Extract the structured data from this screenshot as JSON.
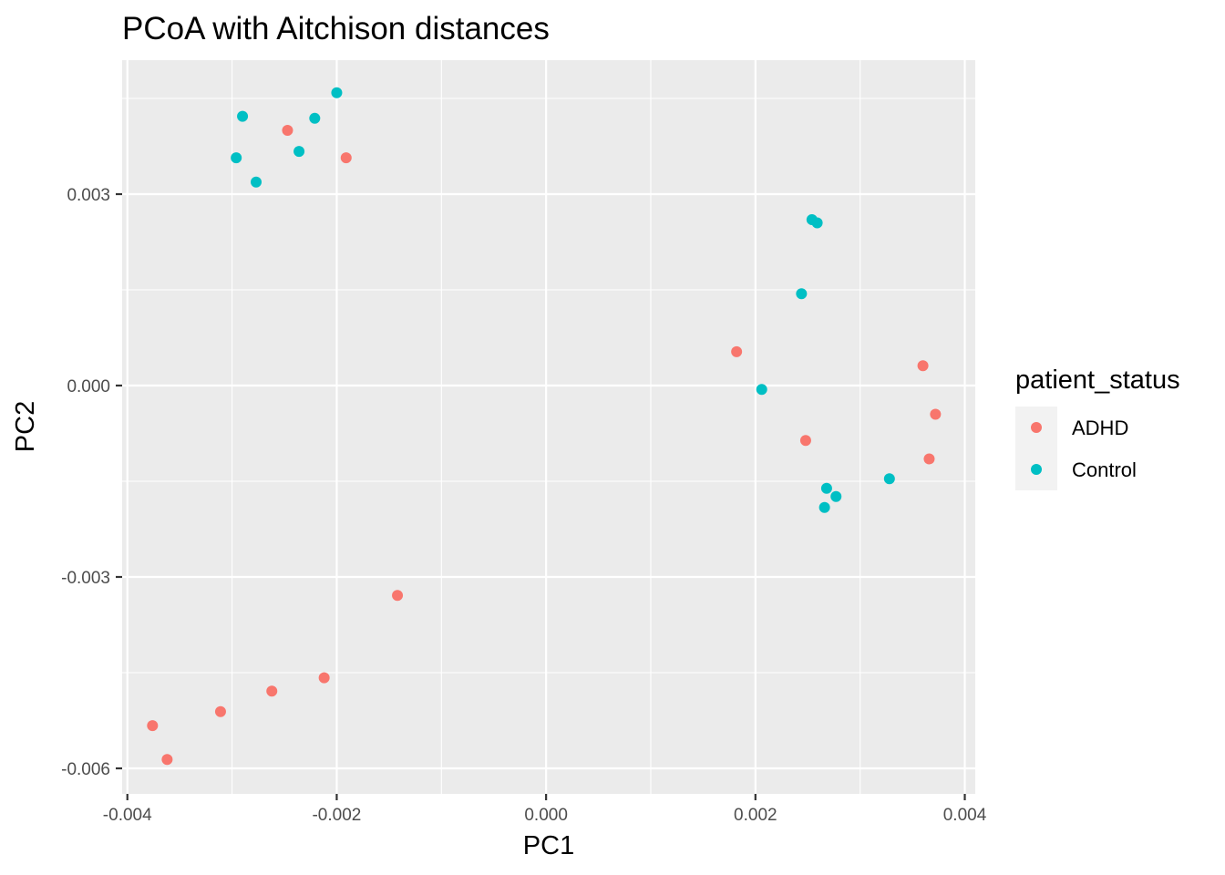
{
  "chart_data": {
    "type": "scatter",
    "title": "PCoA with Aitchison distances",
    "xlabel": "PC1",
    "ylabel": "PC2",
    "xlim": [
      -0.00405,
      0.0041
    ],
    "ylim": [
      -0.0064,
      0.0051
    ],
    "x_ticks": [
      -0.004,
      -0.002,
      0.0,
      0.002,
      0.004
    ],
    "x_tick_labels": [
      "-0.004",
      "-0.002",
      "0.000",
      "0.002",
      "0.004"
    ],
    "y_ticks": [
      -0.006,
      -0.003,
      0.0,
      0.003
    ],
    "y_tick_labels": [
      "-0.006",
      "-0.003",
      "0.000",
      "0.003"
    ],
    "grid": true,
    "legend": {
      "title": "patient_status",
      "placement": "right"
    },
    "colors": {
      "ADHD": "#F8766D",
      "Control": "#00BFC4"
    },
    "series": [
      {
        "name": "ADHD",
        "color": "#F8766D",
        "points": [
          {
            "x": -0.00247,
            "y": 0.004
          },
          {
            "x": -0.00191,
            "y": 0.00357
          },
          {
            "x": -0.00142,
            "y": -0.00329
          },
          {
            "x": -0.00212,
            "y": -0.00458
          },
          {
            "x": -0.00262,
            "y": -0.00479
          },
          {
            "x": -0.00311,
            "y": -0.00511
          },
          {
            "x": -0.00376,
            "y": -0.00533
          },
          {
            "x": -0.00362,
            "y": -0.00586
          },
          {
            "x": 0.00182,
            "y": 0.00053
          },
          {
            "x": 0.00248,
            "y": -0.00086
          },
          {
            "x": 0.0036,
            "y": 0.00031
          },
          {
            "x": 0.00372,
            "y": -0.00045
          },
          {
            "x": 0.00366,
            "y": -0.00115
          }
        ]
      },
      {
        "name": "Control",
        "color": "#00BFC4",
        "points": [
          {
            "x": -0.002,
            "y": 0.00459
          },
          {
            "x": -0.0029,
            "y": 0.00422
          },
          {
            "x": -0.00221,
            "y": 0.00419
          },
          {
            "x": -0.00236,
            "y": 0.00367
          },
          {
            "x": -0.00296,
            "y": 0.00357
          },
          {
            "x": -0.00277,
            "y": 0.00319
          },
          {
            "x": 0.00254,
            "y": 0.0026
          },
          {
            "x": 0.00259,
            "y": 0.00255
          },
          {
            "x": 0.00244,
            "y": 0.00144
          },
          {
            "x": 0.00206,
            "y": -6e-05
          },
          {
            "x": 0.00328,
            "y": -0.00146
          },
          {
            "x": 0.00268,
            "y": -0.00161
          },
          {
            "x": 0.00277,
            "y": -0.00174
          },
          {
            "x": 0.00266,
            "y": -0.00191
          }
        ]
      }
    ]
  }
}
